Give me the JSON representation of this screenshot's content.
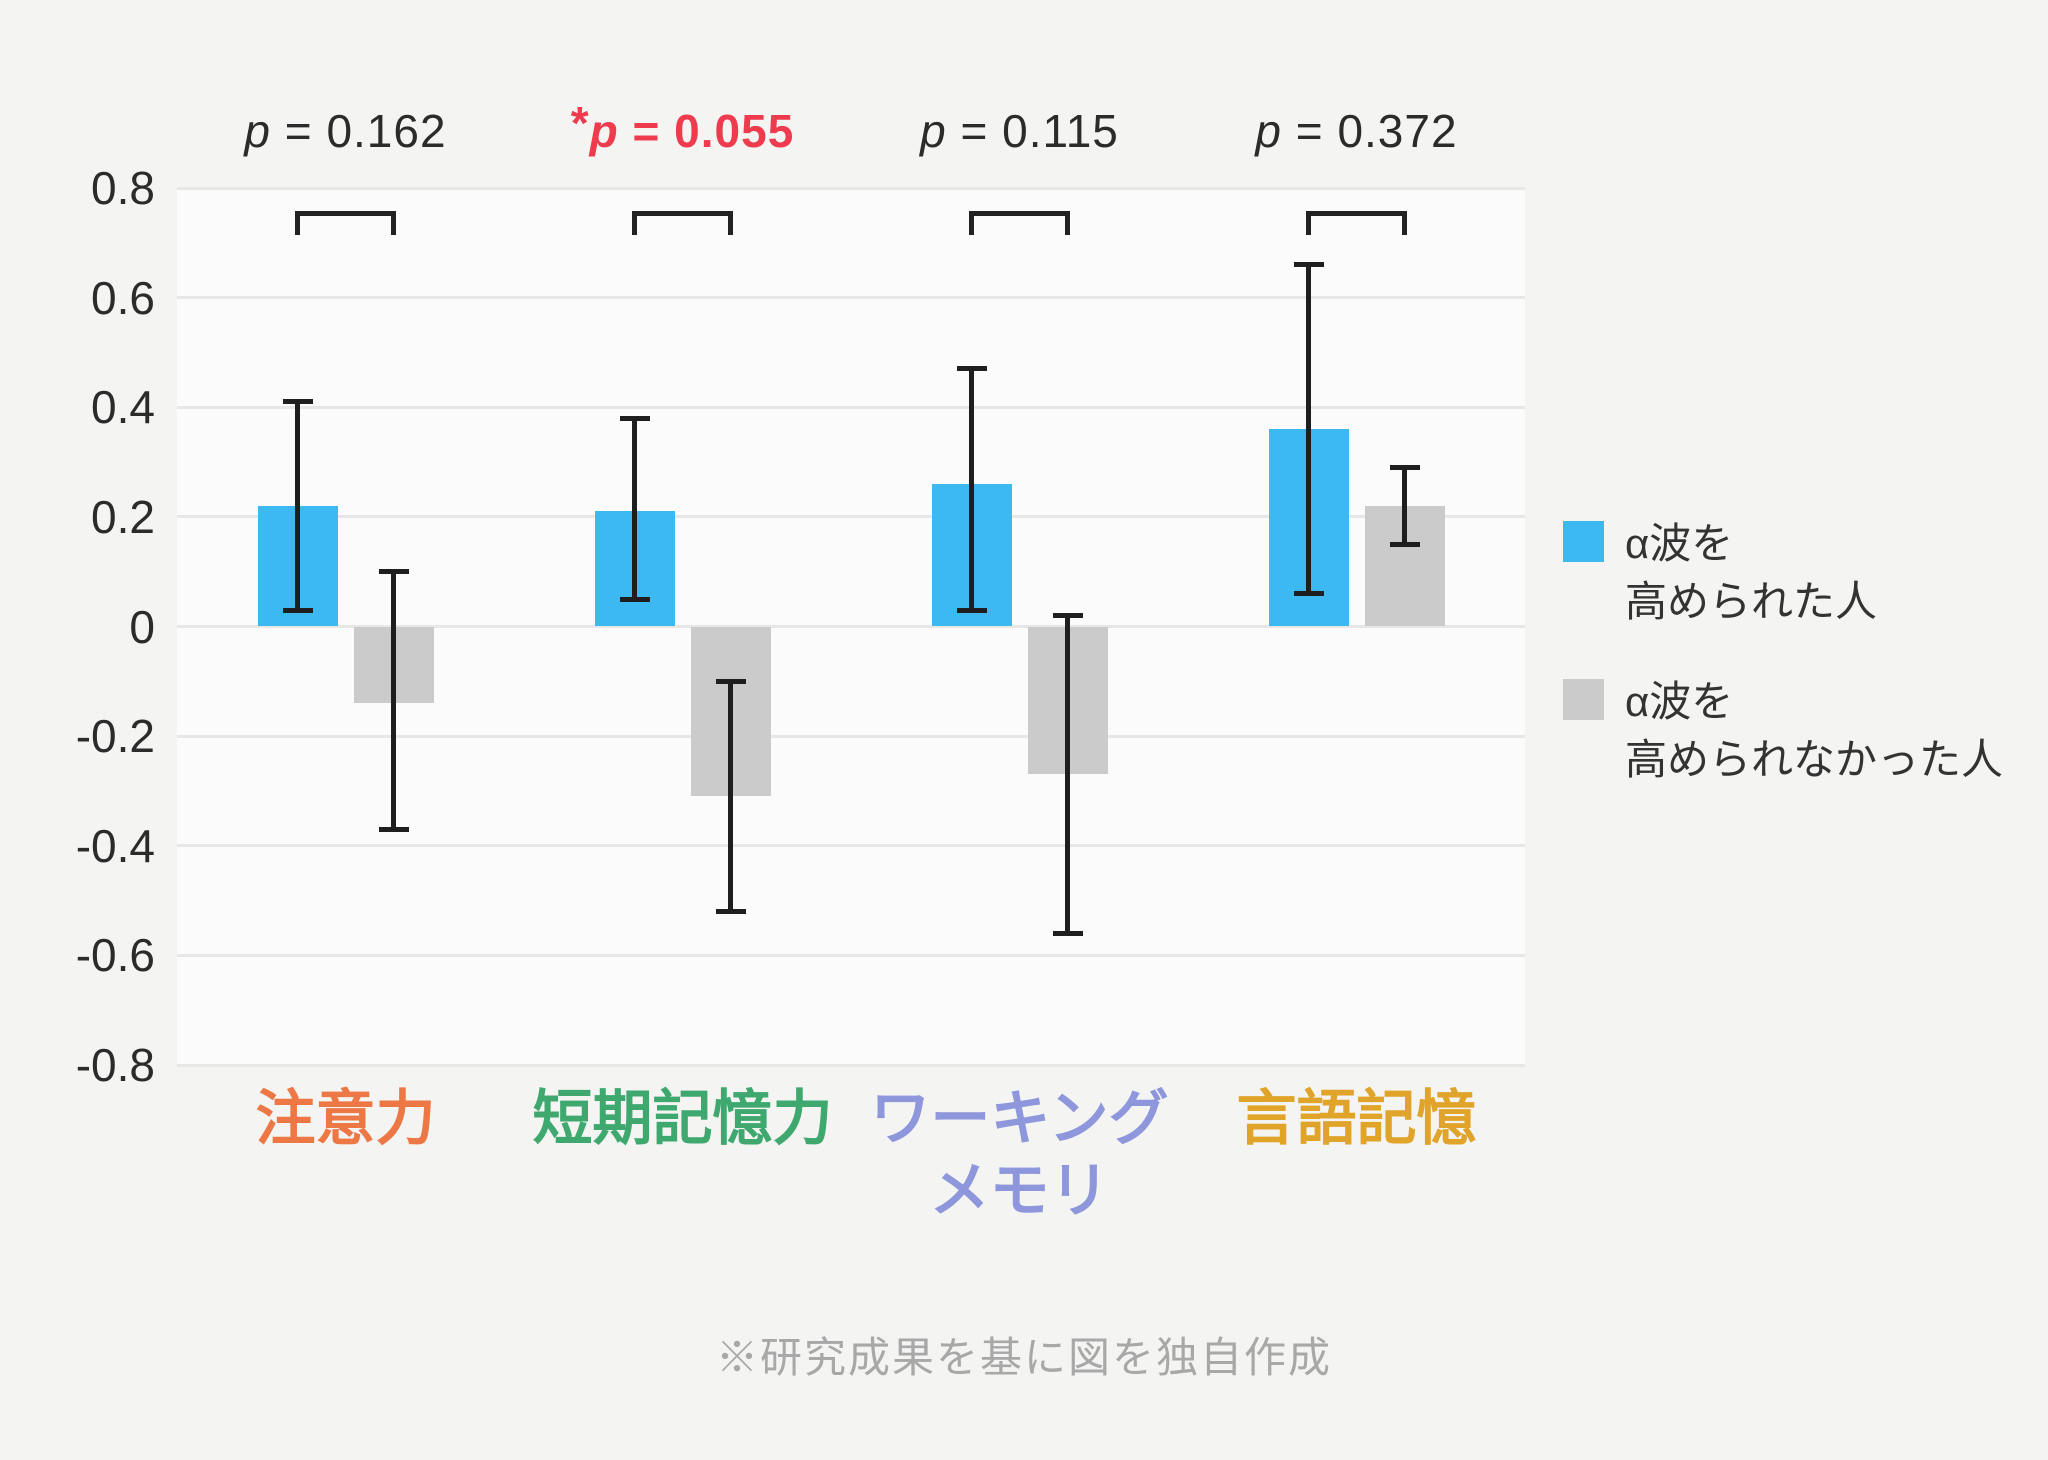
{
  "chart_data": {
    "type": "bar",
    "title": "",
    "xlabel": "",
    "ylabel": "",
    "categories": [
      {
        "lines": [
          "注意力"
        ],
        "color": "#ED7845"
      },
      {
        "lines": [
          "短期記憶力"
        ],
        "color": "#3EA86F"
      },
      {
        "lines": [
          "ワーキング",
          "メモリ"
        ],
        "color": "#8E96DC"
      },
      {
        "lines": [
          "言語記憶"
        ],
        "color": "#E0A42B"
      }
    ],
    "series": [
      {
        "name": "α波を高められた人",
        "legend_lines": [
          "α波を",
          "高められた人"
        ],
        "color": "#3CB9F0",
        "values": [
          0.22,
          0.21,
          0.26,
          0.36
        ],
        "error_low": [
          0.03,
          0.05,
          0.03,
          0.06
        ],
        "error_high": [
          0.41,
          0.38,
          0.47,
          0.66
        ]
      },
      {
        "name": "α波を高められなかった人",
        "legend_lines": [
          "α波を",
          "高められなかった人"
        ],
        "color": "#CBCBCB",
        "values": [
          -0.14,
          -0.31,
          -0.27,
          0.22
        ],
        "error_low": [
          -0.37,
          -0.52,
          -0.56,
          0.15
        ],
        "error_high": [
          0.1,
          -0.1,
          0.02,
          0.29
        ]
      }
    ],
    "p_values": [
      {
        "star": "",
        "symbol": "p",
        "rest": "= 0.162",
        "highlight": false
      },
      {
        "star": "*",
        "symbol": "p",
        "rest": "= 0.055",
        "highlight": true
      },
      {
        "star": "",
        "symbol": "p",
        "rest": "= 0.115",
        "highlight": false
      },
      {
        "star": "",
        "symbol": "p",
        "rest": "= 0.372",
        "highlight": false
      }
    ],
    "y_axis": {
      "min": -0.8,
      "max": 0.8,
      "step": 0.2,
      "tick_labels": [
        "0.8",
        "0.6",
        "0.4",
        "0.2",
        "0",
        "-0.2",
        "-0.4",
        "-0.6",
        "-0.8"
      ],
      "grid": true
    },
    "legend_position": "right",
    "footnote": "※研究成果を基に図を独自作成",
    "colors": {
      "page_bg": "#F4F4F3",
      "plot_bg": "#FBFBFB",
      "gridline": "#E7E7E6",
      "axis_text": "#2B2B2B",
      "error_bar": "#1E1E1E",
      "bracket": "#222222",
      "p_text": "#2B2B2B",
      "highlight_p": "#EE3B4D",
      "legend_text": "#333333",
      "footnote_text": "#A8A8A8"
    }
  }
}
